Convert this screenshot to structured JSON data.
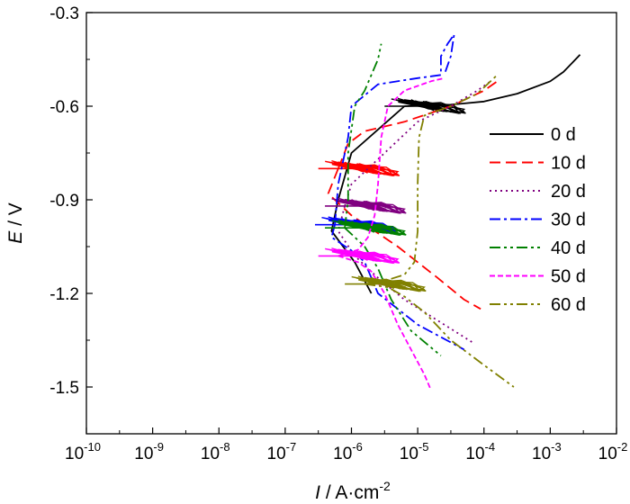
{
  "chart_data": {
    "type": "line",
    "xlabel": {
      "var": "I",
      "unit": " / A·cm",
      "exp": "-2"
    },
    "ylabel": {
      "var": "E",
      "unit": " / V"
    },
    "xscale": "log",
    "xlim_exp": [
      -10,
      -2
    ],
    "x_ticks": [
      {
        "base": "10",
        "exp": "-10"
      },
      {
        "base": "10",
        "exp": "-9"
      },
      {
        "base": "10",
        "exp": "-8"
      },
      {
        "base": "10",
        "exp": "-7"
      },
      {
        "base": "10",
        "exp": "-6"
      },
      {
        "base": "10",
        "exp": "-5"
      },
      {
        "base": "10",
        "exp": "-4"
      },
      {
        "base": "10",
        "exp": "-3"
      },
      {
        "base": "10",
        "exp": "-2"
      }
    ],
    "ylim": [
      -1.65,
      -0.3
    ],
    "y_ticks": [
      {
        "value": -0.3,
        "label": "-0.3"
      },
      {
        "value": -0.6,
        "label": "-0.6"
      },
      {
        "value": -0.9,
        "label": "-0.9"
      },
      {
        "value": -1.2,
        "label": "-1.2"
      },
      {
        "value": -1.5,
        "label": "-1.5"
      }
    ],
    "legend_position": "right",
    "series": [
      {
        "name": "0 d",
        "color": "#000000",
        "dash": "",
        "Ecorr": -0.6,
        "anodic": [
          [
            -5.2,
            -0.6
          ],
          [
            -4.5,
            -0.595
          ],
          [
            -4.0,
            -0.585
          ],
          [
            -3.5,
            -0.56
          ],
          [
            -3.0,
            -0.52
          ],
          [
            -2.8,
            -0.49
          ],
          [
            -2.55,
            -0.435
          ]
        ],
        "cathodic": [
          [
            -5.2,
            -0.6
          ],
          [
            -6.0,
            -0.75
          ],
          [
            -6.2,
            -0.9
          ],
          [
            -6.3,
            -1.0
          ],
          [
            -5.95,
            -1.1
          ],
          [
            -5.7,
            -1.2
          ]
        ]
      },
      {
        "name": "10 d",
        "color": "#ff0000",
        "dash": "12,6",
        "Ecorr": -0.8,
        "anodic": [
          [
            -6.2,
            -0.8
          ],
          [
            -6.05,
            -0.72
          ],
          [
            -5.8,
            -0.68
          ],
          [
            -5.2,
            -0.65
          ],
          [
            -4.5,
            -0.6
          ],
          [
            -4.0,
            -0.55
          ],
          [
            -3.8,
            -0.52
          ]
        ],
        "cathodic": [
          [
            -6.2,
            -0.8
          ],
          [
            -6.35,
            -0.88
          ],
          [
            -6.0,
            -0.95
          ],
          [
            -5.3,
            -1.05
          ],
          [
            -4.7,
            -1.15
          ],
          [
            -4.3,
            -1.22
          ],
          [
            -4.05,
            -1.25
          ]
        ]
      },
      {
        "name": "20 d",
        "color": "#800080",
        "dash": "2,4",
        "Ecorr": -0.92,
        "anodic": [
          [
            -6.1,
            -0.92
          ],
          [
            -6.0,
            -0.85
          ],
          [
            -5.5,
            -0.75
          ],
          [
            -5.0,
            -0.65
          ],
          [
            -4.5,
            -0.6
          ],
          [
            -4.1,
            -0.55
          ],
          [
            -3.9,
            -0.52
          ]
        ],
        "cathodic": [
          [
            -6.1,
            -0.92
          ],
          [
            -6.2,
            -1.0
          ],
          [
            -5.95,
            -1.08
          ],
          [
            -5.6,
            -1.15
          ],
          [
            -5.2,
            -1.22
          ],
          [
            -4.6,
            -1.3
          ],
          [
            -4.15,
            -1.36
          ]
        ]
      },
      {
        "name": "30 d",
        "color": "#0000ff",
        "dash": "12,4,3,4",
        "Ecorr": -0.98,
        "anodic": [
          [
            -6.25,
            -0.98
          ],
          [
            -6.2,
            -0.85
          ],
          [
            -6.05,
            -0.7
          ],
          [
            -6.0,
            -0.6
          ],
          [
            -5.6,
            -0.53
          ],
          [
            -5.0,
            -0.51
          ],
          [
            -4.65,
            -0.5
          ],
          [
            -4.65,
            -0.44
          ],
          [
            -4.55,
            -0.4
          ],
          [
            -4.45,
            -0.37
          ],
          [
            -4.5,
            -0.44
          ],
          [
            -4.6,
            -0.5
          ]
        ],
        "cathodic": [
          [
            -6.25,
            -0.98
          ],
          [
            -6.3,
            -1.02
          ],
          [
            -5.95,
            -1.07
          ],
          [
            -5.8,
            -1.1
          ],
          [
            -5.6,
            -1.2
          ],
          [
            -5.0,
            -1.3
          ],
          [
            -4.3,
            -1.38
          ]
        ]
      },
      {
        "name": "40 d",
        "color": "#008000",
        "dash": "12,4,3,4,3,4",
        "Ecorr": -0.99,
        "anodic": [
          [
            -6.1,
            -0.99
          ],
          [
            -6.05,
            -0.9
          ],
          [
            -6.05,
            -0.75
          ],
          [
            -5.95,
            -0.6
          ],
          [
            -5.8,
            -0.55
          ],
          [
            -5.7,
            -0.5
          ],
          [
            -5.6,
            -0.45
          ],
          [
            -5.55,
            -0.4
          ]
        ],
        "cathodic": [
          [
            -6.1,
            -0.99
          ],
          [
            -5.95,
            -1.02
          ],
          [
            -5.8,
            -1.05
          ],
          [
            -5.6,
            -1.12
          ],
          [
            -5.4,
            -1.22
          ],
          [
            -5.1,
            -1.32
          ],
          [
            -4.65,
            -1.4
          ]
        ]
      },
      {
        "name": "50 d",
        "color": "#ff00ff",
        "dash": "6,3",
        "Ecorr": -1.08,
        "anodic": [
          [
            -6.2,
            -1.08
          ],
          [
            -5.9,
            -1.06
          ],
          [
            -5.75,
            -1.02
          ],
          [
            -5.65,
            -0.95
          ],
          [
            -5.6,
            -0.85
          ],
          [
            -5.55,
            -0.7
          ],
          [
            -5.45,
            -0.6
          ],
          [
            -5.2,
            -0.55
          ],
          [
            -4.8,
            -0.52
          ],
          [
            -4.6,
            -0.51
          ]
        ],
        "cathodic": [
          [
            -6.2,
            -1.08
          ],
          [
            -5.9,
            -1.1
          ],
          [
            -5.7,
            -1.13
          ],
          [
            -5.5,
            -1.2
          ],
          [
            -5.3,
            -1.3
          ],
          [
            -5.05,
            -1.4
          ],
          [
            -4.9,
            -1.46
          ],
          [
            -4.8,
            -1.51
          ]
        ]
      },
      {
        "name": "60 d",
        "color": "#808000",
        "dash": "12,4,3,4,3,4",
        "Ecorr": -1.17,
        "anodic": [
          [
            -5.8,
            -1.17
          ],
          [
            -5.5,
            -1.16
          ],
          [
            -5.2,
            -1.14
          ],
          [
            -5.05,
            -1.1
          ],
          [
            -5.0,
            -1.0
          ],
          [
            -5.0,
            -0.85
          ],
          [
            -4.98,
            -0.7
          ],
          [
            -4.9,
            -0.63
          ],
          [
            -4.5,
            -0.6
          ],
          [
            -4.1,
            -0.56
          ],
          [
            -3.8,
            -0.5
          ]
        ],
        "cathodic": [
          [
            -5.8,
            -1.17
          ],
          [
            -5.45,
            -1.18
          ],
          [
            -5.2,
            -1.21
          ],
          [
            -4.9,
            -1.26
          ],
          [
            -4.5,
            -1.35
          ],
          [
            -4.0,
            -1.43
          ],
          [
            -3.55,
            -1.5
          ]
        ]
      }
    ]
  }
}
